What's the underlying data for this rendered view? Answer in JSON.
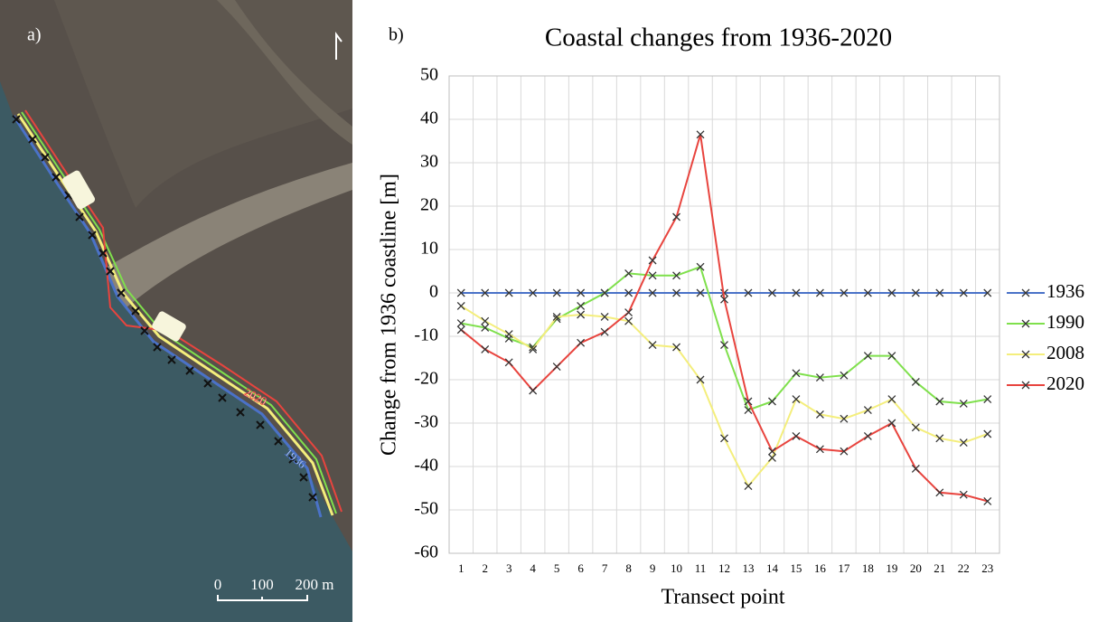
{
  "map": {
    "panel_label": "a)",
    "coast_labels": [
      "2020",
      "1936"
    ],
    "scale_labels": [
      "0",
      "100",
      "200 m"
    ]
  },
  "chart_data": {
    "type": "line",
    "panel_label": "b)",
    "title": "Coastal changes from 1936-2020",
    "x_label": "Transect point",
    "y_label": "Change from 1936 coastline [m]",
    "categories": [
      "1",
      "2",
      "3",
      "4",
      "5",
      "6",
      "7",
      "8",
      "9",
      "10",
      "11",
      "12",
      "13",
      "14",
      "15",
      "16",
      "17",
      "18",
      "19",
      "20",
      "21",
      "22",
      "23"
    ],
    "series": [
      {
        "name": "1936",
        "color": "#4a72c8",
        "values": [
          0,
          0,
          0,
          0,
          0,
          0,
          0,
          0,
          0,
          0,
          0,
          0,
          0,
          0,
          0,
          0,
          0,
          0,
          0,
          0,
          0,
          0,
          0
        ]
      },
      {
        "name": "1990",
        "color": "#7fe04c",
        "values": [
          -7,
          -8,
          -10.5,
          -12.5,
          -6,
          -3,
          0,
          4.5,
          4,
          4,
          6,
          -12,
          -27,
          -25,
          -18.5,
          -19.5,
          -19,
          -14.5,
          -14.5,
          -20.5,
          -25,
          -25.5,
          -24.5
        ]
      },
      {
        "name": "2008",
        "color": "#f4ee7c",
        "values": [
          -3,
          -6.5,
          -9.5,
          -13,
          -5.5,
          -5,
          -5.5,
          -6.5,
          -12,
          -12.5,
          -20,
          -33.5,
          -44.5,
          -38,
          -24.5,
          -28,
          -29,
          -27,
          -24.5,
          -31,
          -33.5,
          -34.5,
          -32.5
        ]
      },
      {
        "name": "2020",
        "color": "#e8443e",
        "values": [
          -8.5,
          -13,
          -16,
          -22.5,
          -17,
          -11.5,
          -9,
          -4.5,
          7.5,
          17.5,
          36.5,
          -1.5,
          -25,
          -36.5,
          -33,
          -36,
          -36.5,
          -33,
          -30,
          -40.5,
          -46,
          -46.5,
          -48
        ]
      }
    ],
    "ylim": [
      -60,
      50
    ],
    "yticks": [
      -60,
      -50,
      -40,
      -30,
      -20,
      -10,
      0,
      10,
      20,
      30,
      40,
      50
    ],
    "grid": true,
    "legend": "right"
  }
}
